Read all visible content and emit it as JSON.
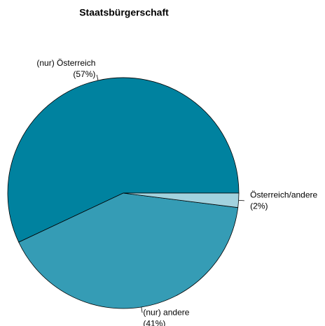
{
  "chart_data": {
    "type": "pie",
    "title": "Staatsbürgerschaft",
    "categories": [
      "(nur) Österreich",
      "(nur) andere",
      "Österreich/andere"
    ],
    "values": [
      57,
      41,
      2
    ],
    "value_labels": [
      "(57%)",
      "(41%)",
      "(2%)"
    ],
    "colors": [
      "#00829f",
      "#359cb5",
      "#a2d2de"
    ]
  }
}
